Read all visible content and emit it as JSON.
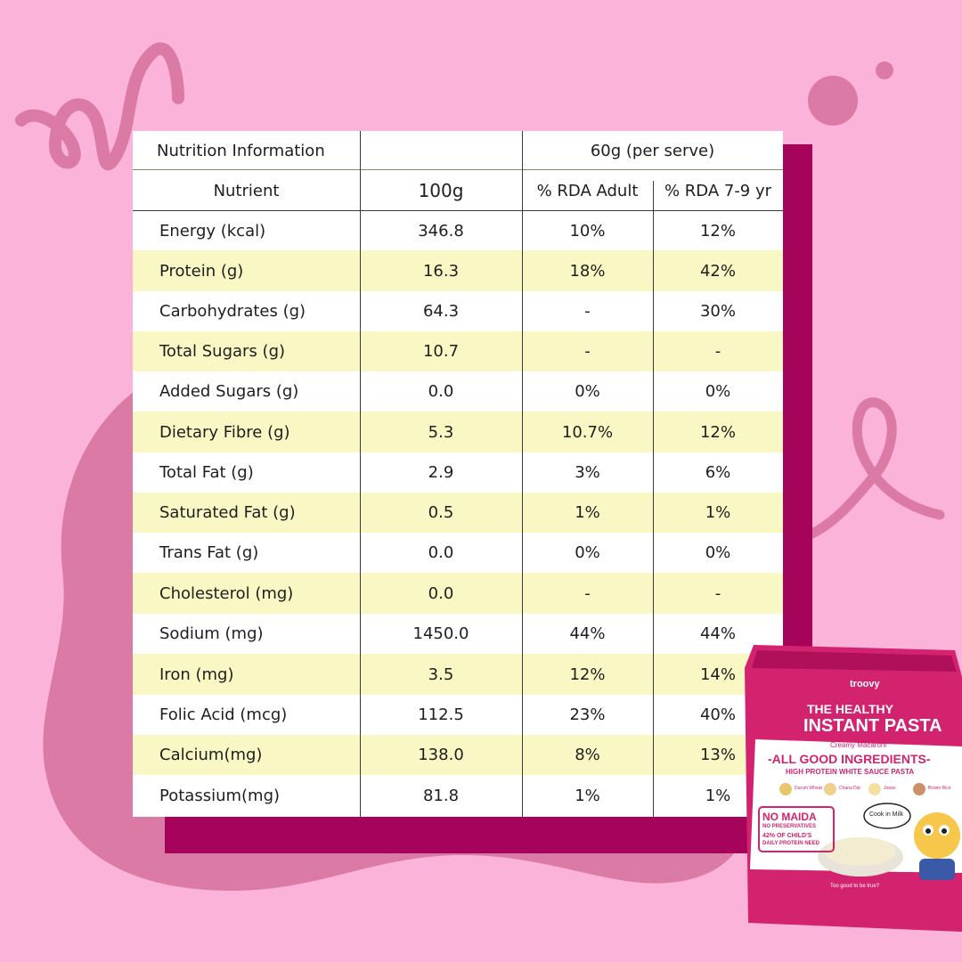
{
  "table": {
    "header": {
      "title": "Nutrition Information",
      "serve_label": "60g (per serve)",
      "nutrient_label": "Nutrient",
      "col_100g": "100g",
      "col_rda_adult": "% RDA Adult",
      "col_rda_kids": "% RDA 7-9 yr"
    },
    "rows": [
      {
        "name": "Energy (kcal)",
        "per100": "346.8",
        "adult": "10%",
        "kids": "12%"
      },
      {
        "name": "Protein (g)",
        "per100": "16.3",
        "adult": "18%",
        "kids": "42%"
      },
      {
        "name": "Carbohydrates (g)",
        "per100": "64.3",
        "adult": "-",
        "kids": "30%"
      },
      {
        "name": "Total Sugars (g)",
        "per100": "10.7",
        "adult": "-",
        "kids": "-"
      },
      {
        "name": "Added Sugars (g)",
        "per100": "0.0",
        "adult": "0%",
        "kids": "0%"
      },
      {
        "name": "Dietary Fibre (g)",
        "per100": "5.3",
        "adult": "10.7%",
        "kids": "12%"
      },
      {
        "name": "Total Fat (g)",
        "per100": "2.9",
        "adult": "3%",
        "kids": "6%"
      },
      {
        "name": "Saturated Fat (g)",
        "per100": "0.5",
        "adult": "1%",
        "kids": "1%"
      },
      {
        "name": "Trans Fat (g)",
        "per100": "0.0",
        "adult": "0%",
        "kids": "0%"
      },
      {
        "name": "Cholesterol (mg)",
        "per100": "0.0",
        "adult": "-",
        "kids": "-"
      },
      {
        "name": "Sodium (mg)",
        "per100": "1450.0",
        "adult": "44%",
        "kids": "44%"
      },
      {
        "name": "Iron (mg)",
        "per100": "3.5",
        "adult": "12%",
        "kids": "14%"
      },
      {
        "name": "Folic Acid (mcg)",
        "per100": "112.5",
        "adult": "23%",
        "kids": "40%"
      },
      {
        "name": "Calcium(mg)",
        "per100": "138.0",
        "adult": "8%",
        "kids": "13%"
      },
      {
        "name": "Potassium(mg)",
        "per100": "81.8",
        "adult": "1%",
        "kids": "1%"
      }
    ]
  },
  "package": {
    "brand": "troovy",
    "line1": "THE HEALTHY",
    "line2": "INSTANT PASTA",
    "flavor": "Creamy Macaroni",
    "headline": "-ALL GOOD INGREDIENTS-",
    "subline": "HIGH PROTEIN WHITE SAUCE PASTA",
    "ingredients": [
      "Durum Wheat",
      "Chana Dal",
      "Jowar",
      "Brown Rice"
    ],
    "badge_title": "NO MAIDA",
    "badge_sub": "NO PRESERVATIVES",
    "badge_claim1": "42% OF CHILD'S",
    "badge_claim2": "DAILY PROTEIN NEED",
    "bubble": "Cook in Milk",
    "tagline": "Too good to be true?"
  },
  "colors": {
    "background": "#fbb3d9",
    "accent_dark": "#a5045a",
    "highlight_row": "#f9f7c3",
    "doodle": "#dc7aa6"
  }
}
